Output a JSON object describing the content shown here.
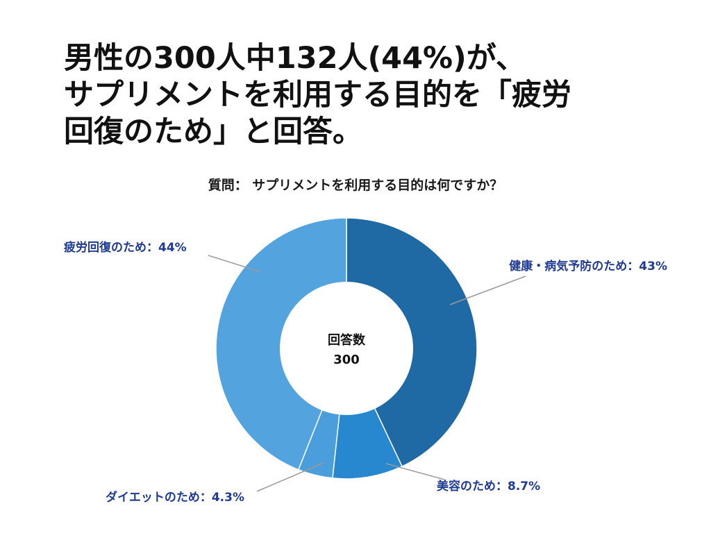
{
  "headline": {
    "line1": "男性の300人中132人(44%)が、",
    "line2": "サプリメントを利用する目的を「疲労",
    "line3": "回復のため」と回答。"
  },
  "question": "質問： サプリメントを利用する目的は何ですか？",
  "center": {
    "label": "回答数",
    "value": "300"
  },
  "chart_data": {
    "type": "pie",
    "hole": true,
    "total": 300,
    "slices": [
      {
        "category": "健康・病気予防のため",
        "value": 43,
        "label": "健康・病気予防のため：43%",
        "color": "#1f6aa5"
      },
      {
        "category": "美容のため",
        "value": 8.7,
        "label": "美容のため：8.7%",
        "color": "#2787cf"
      },
      {
        "category": "ダイエットのため",
        "value": 4.3,
        "label": "ダイエットのため：4.3%",
        "color": "#4a9edb"
      },
      {
        "category": "疲労回復のため",
        "value": 44,
        "label": "疲労回復のため：44%",
        "color": "#53a3de"
      }
    ]
  }
}
